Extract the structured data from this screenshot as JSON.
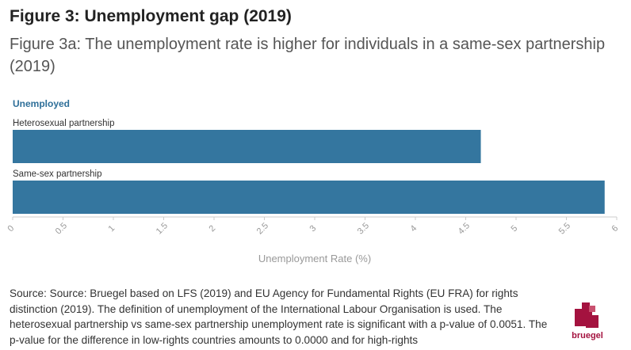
{
  "title": "Figure 3: Unemployment gap (2019)",
  "subtitle": "Figure 3a: The unemployment rate is higher for individuals in a same-sex partnership (2019)",
  "chart_data": {
    "type": "bar",
    "orientation": "horizontal",
    "legend_title": "Unemployed",
    "categories": [
      "Heterosexual partnership",
      "Same-sex partnership"
    ],
    "values": [
      4.65,
      5.88
    ],
    "xlabel": "Unemployment Rate (%)",
    "xlim": [
      0,
      6
    ],
    "xticks": [
      "0",
      "0.5",
      "1",
      "1.5",
      "2",
      "2.5",
      "3",
      "3.5",
      "4",
      "4.5",
      "5",
      "5.5",
      "6"
    ],
    "grid": false,
    "colors": {
      "bar": "#34769f",
      "legend_title": "#2e6f99",
      "axis": "#cccccc",
      "tick_text": "#999999"
    }
  },
  "source": "Source: Source: Bruegel based on LFS (2019) and EU Agency for Fundamental Rights (EU FRA) for rights distinction (2019). The definition of unemployment of the International Labour Organisation is used. The heterosexual partnership vs same-sex partnership unemployment rate is significant with a p-value of 0.0051. The p-value for the difference in low-rights countries amounts to 0.0000 and for high-rights",
  "logo": {
    "text": "bruegel",
    "color": "#a4123f"
  }
}
